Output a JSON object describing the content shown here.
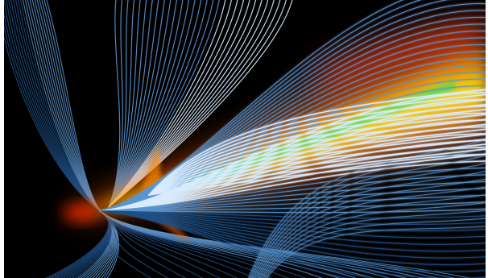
{
  "image": {
    "kind": "scientific-visualization",
    "subject": "streamlines-and-volume-rendered-plume",
    "colors": {
      "background": "#000000",
      "streamline_dark": "#1f4f86",
      "streamline_mid": "#5b95cf",
      "streamline_light": "#d9ecff",
      "plume_red": "#ff3b00",
      "plume_orange": "#ff9a00",
      "plume_yellow": "#ffe500",
      "plume_green": "#3ee05a",
      "plume_cyan": "#00d8d8"
    }
  }
}
